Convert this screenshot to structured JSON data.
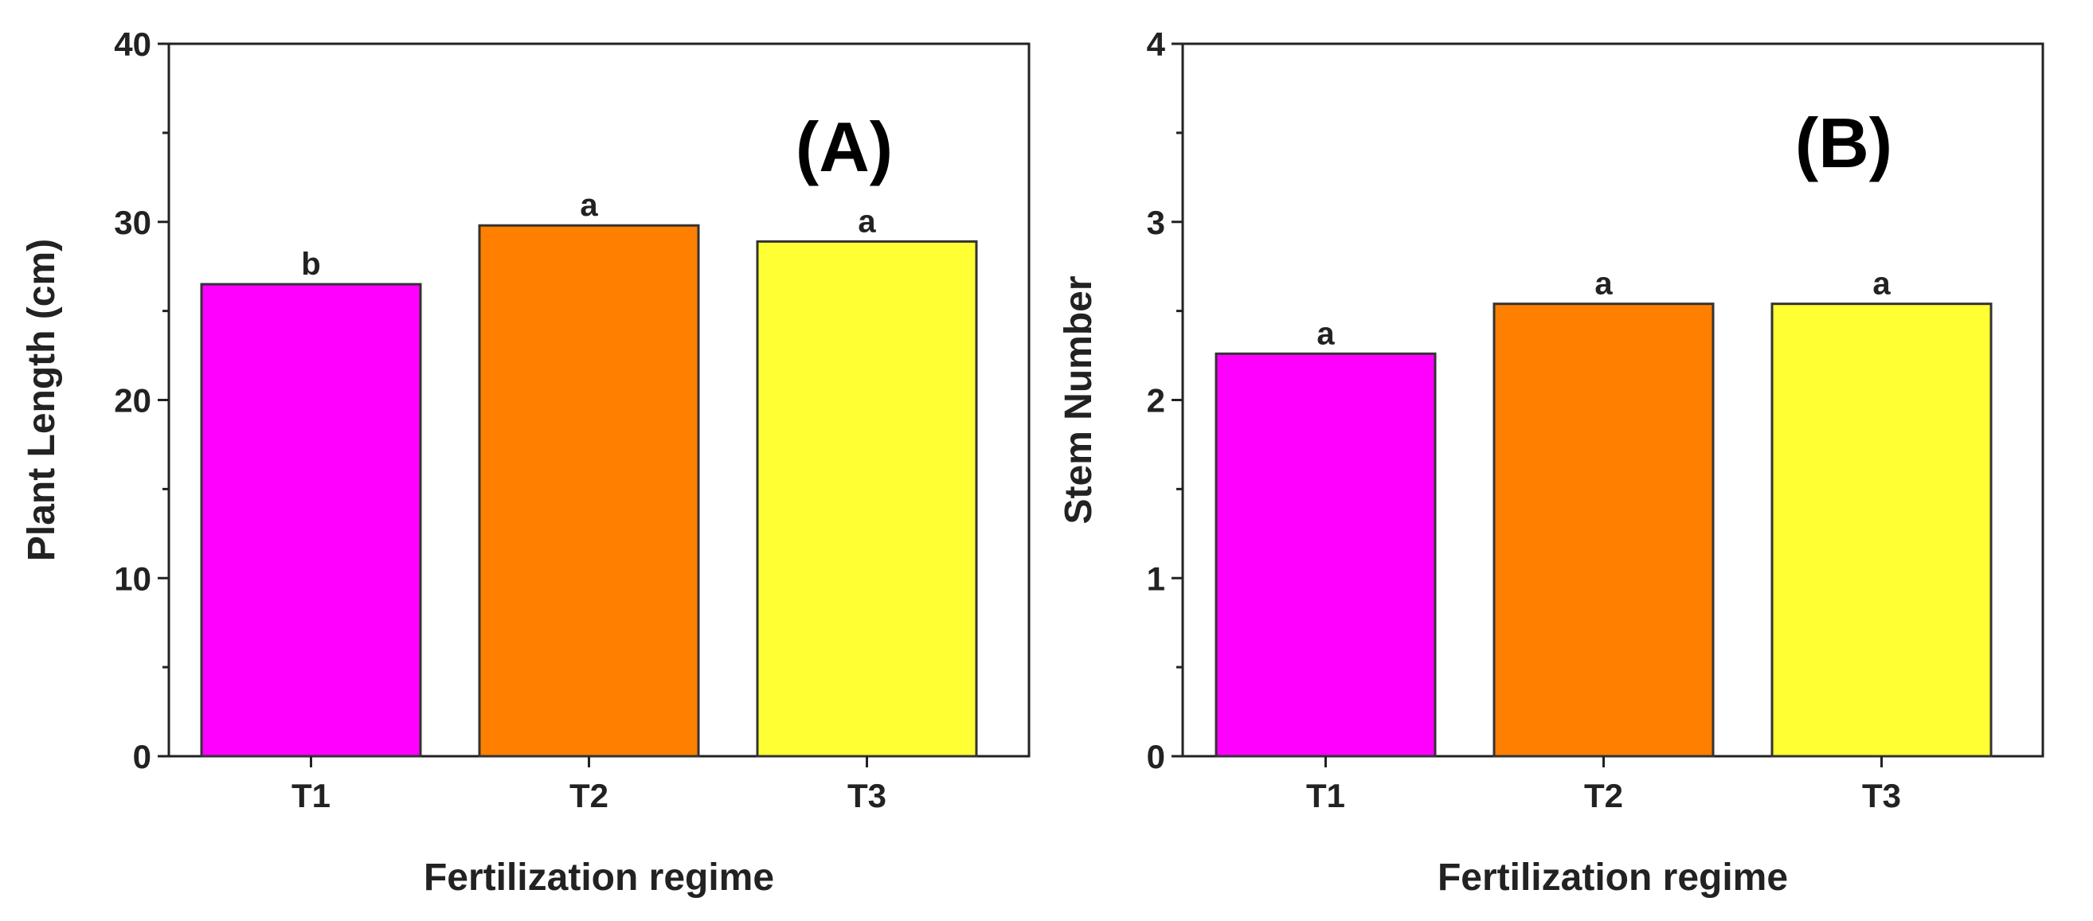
{
  "chart_data": [
    {
      "type": "bar",
      "panel_label": "(A)",
      "categories": [
        "T1",
        "T2",
        "T3"
      ],
      "values": [
        26.5,
        29.8,
        28.9
      ],
      "significance": [
        "b",
        "a",
        "a"
      ],
      "colors": [
        "#ff00ff",
        "#ff7f00",
        "#ffff33"
      ],
      "xlabel": "Fertilization regime",
      "ylabel": "Plant Length (cm)",
      "ylim": [
        0,
        40
      ],
      "yticks": [
        0,
        10,
        20,
        30,
        40
      ]
    },
    {
      "type": "bar",
      "panel_label": "(B)",
      "categories": [
        "T1",
        "T2",
        "T3"
      ],
      "values": [
        2.26,
        2.54,
        2.54
      ],
      "significance": [
        "a",
        "a",
        "a"
      ],
      "colors": [
        "#ff00ff",
        "#ff7f00",
        "#ffff33"
      ],
      "xlabel": "Fertilization regime",
      "ylabel": "Stem Number",
      "ylim": [
        0,
        4
      ],
      "yticks": [
        0,
        1,
        2,
        3,
        4
      ]
    }
  ]
}
